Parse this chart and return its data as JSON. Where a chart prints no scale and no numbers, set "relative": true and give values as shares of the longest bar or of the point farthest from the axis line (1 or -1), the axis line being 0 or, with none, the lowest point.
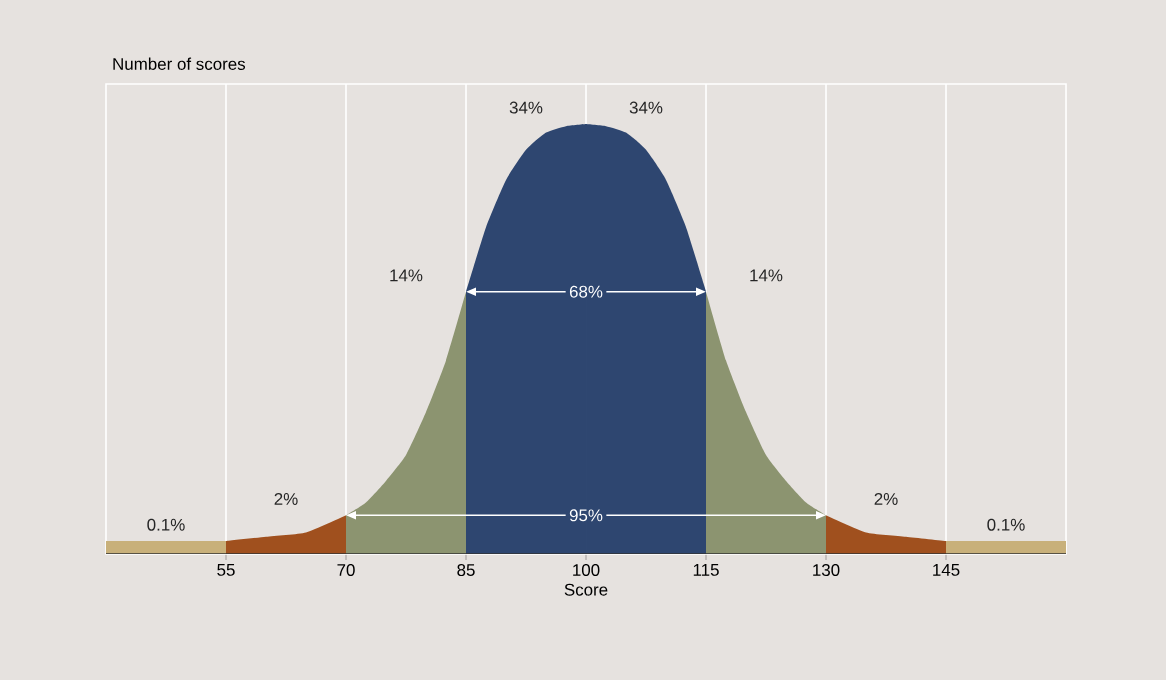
{
  "chart_data": {
    "type": "area",
    "relative": true,
    "ylabel": "Number of scores",
    "xlabel": "Score",
    "xlim": [
      40,
      160
    ],
    "xticks": [
      55,
      70,
      85,
      100,
      115,
      130,
      145
    ],
    "grid": "x",
    "series": [
      {
        "color": "#c8b07a",
        "x": [
          40,
          55
        ],
        "values": [
          0.03,
          0.03
        ]
      },
      {
        "color": "#a0501e",
        "x": [
          55,
          60,
          65,
          70
        ],
        "values": [
          0.03,
          0.04,
          0.05,
          0.09
        ]
      },
      {
        "color": "#8c9470",
        "x": [
          70,
          72.5,
          75,
          77.5,
          80,
          82.5,
          85
        ],
        "values": [
          0.09,
          0.12,
          0.17,
          0.23,
          0.33,
          0.45,
          0.61
        ]
      },
      {
        "color": "#2e4670",
        "x": [
          85,
          87.5,
          90,
          92.5,
          95,
          97.5,
          100
        ],
        "values": [
          0.61,
          0.76,
          0.87,
          0.94,
          0.98,
          0.995,
          1
        ]
      },
      {
        "color": "#2e4670",
        "x": [
          100,
          102.5,
          105,
          107.5,
          110,
          112.5,
          115
        ],
        "values": [
          1,
          0.995,
          0.98,
          0.94,
          0.87,
          0.76,
          0.61
        ]
      },
      {
        "color": "#8c9470",
        "x": [
          115,
          117.5,
          120,
          122.5,
          125,
          127.5,
          130
        ],
        "values": [
          0.61,
          0.45,
          0.33,
          0.23,
          0.17,
          0.12,
          0.09
        ]
      },
      {
        "color": "#a0501e",
        "x": [
          130,
          135,
          140,
          145
        ],
        "values": [
          0.09,
          0.05,
          0.04,
          0.03
        ]
      },
      {
        "color": "#c8b07a",
        "x": [
          145,
          160
        ],
        "values": [
          0.03,
          0.03
        ]
      }
    ],
    "annotations": [
      "0.1%",
      "2%",
      "14%",
      "34%",
      "34%",
      "14%",
      "2%",
      "0.1%",
      "68%",
      "95%"
    ]
  }
}
